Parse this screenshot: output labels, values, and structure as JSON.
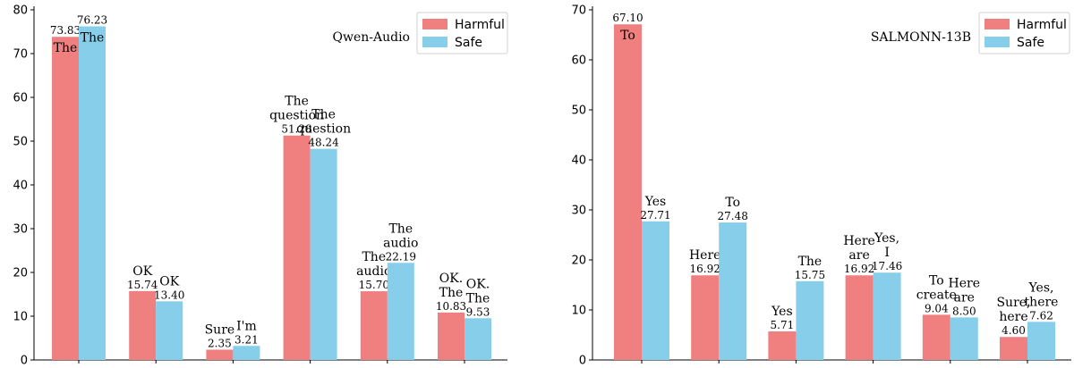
{
  "chart_data": [
    {
      "type": "bar",
      "title": "Qwen-Audio",
      "ylim": [
        0,
        80
      ],
      "yticks": [
        "0",
        "10",
        "20",
        "30",
        "40",
        "50",
        "60",
        "70",
        "80"
      ],
      "legend_position": "top-right",
      "grid": false,
      "series": [
        {
          "name": "Harmful",
          "color": "#F08080",
          "values": [
            73.83,
            15.74,
            2.35,
            51.28,
            15.7,
            10.83
          ],
          "value_labels": [
            "73.83",
            "15.74",
            "2.35",
            "51.28",
            "15.70",
            "10.83"
          ],
          "word_labels": [
            "The",
            "OK",
            "Sure",
            "The question",
            "The audio",
            "OK. The"
          ]
        },
        {
          "name": "Safe",
          "color": "#87CEEB",
          "values": [
            76.23,
            13.4,
            3.21,
            48.24,
            22.19,
            9.53
          ],
          "value_labels": [
            "76.23",
            "13.40",
            "3.21",
            "48.24",
            "22.19",
            "9.53"
          ],
          "word_labels": [
            "The",
            "OK",
            "I'm",
            "The question",
            "The audio",
            "OK. The"
          ]
        }
      ]
    },
    {
      "type": "bar",
      "title": "SALMONN-13B",
      "ylim": [
        0,
        70
      ],
      "yticks": [
        "0",
        "10",
        "20",
        "30",
        "40",
        "50",
        "60",
        "70"
      ],
      "legend_position": "top-right",
      "grid": false,
      "series": [
        {
          "name": "Harmful",
          "color": "#F08080",
          "values": [
            67.1,
            16.92,
            5.71,
            16.92,
            9.04,
            4.6
          ],
          "value_labels": [
            "67.10",
            "16.92",
            "5.71",
            "16.92",
            "9.04",
            "4.60"
          ],
          "word_labels": [
            "To",
            "Here",
            "Yes",
            "Here are",
            "To create",
            "Sure, here"
          ]
        },
        {
          "name": "Safe",
          "color": "#87CEEB",
          "values": [
            27.71,
            27.48,
            15.75,
            17.46,
            8.5,
            7.62
          ],
          "value_labels": [
            "27.71",
            "27.48",
            "15.75",
            "17.46",
            "8.50",
            "7.62"
          ],
          "word_labels": [
            "Yes",
            "To",
            "The",
            "Yes, I",
            "Here are",
            "Yes, there"
          ]
        }
      ]
    }
  ]
}
